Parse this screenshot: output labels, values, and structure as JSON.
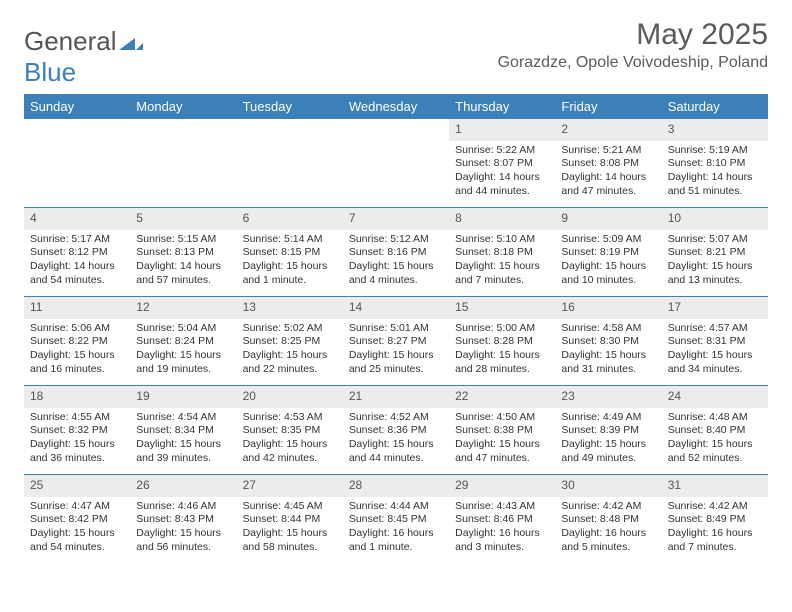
{
  "logo": {
    "text1": "General",
    "text2": "Blue"
  },
  "title": {
    "month": "May 2025",
    "location": "Gorazdze, Opole Voivodeship, Poland"
  },
  "colors": {
    "accent": "#3d7fb8",
    "header_bg": "#3d7fb8",
    "daynum_bg": "#ececec",
    "text": "#333333"
  },
  "day_headers": [
    "Sunday",
    "Monday",
    "Tuesday",
    "Wednesday",
    "Thursday",
    "Friday",
    "Saturday"
  ],
  "blank_leading": 4,
  "days": [
    {
      "n": "1",
      "sunrise": "5:22 AM",
      "sunset": "8:07 PM",
      "daylight": "14 hours and 44 minutes."
    },
    {
      "n": "2",
      "sunrise": "5:21 AM",
      "sunset": "8:08 PM",
      "daylight": "14 hours and 47 minutes."
    },
    {
      "n": "3",
      "sunrise": "5:19 AM",
      "sunset": "8:10 PM",
      "daylight": "14 hours and 51 minutes."
    },
    {
      "n": "4",
      "sunrise": "5:17 AM",
      "sunset": "8:12 PM",
      "daylight": "14 hours and 54 minutes."
    },
    {
      "n": "5",
      "sunrise": "5:15 AM",
      "sunset": "8:13 PM",
      "daylight": "14 hours and 57 minutes."
    },
    {
      "n": "6",
      "sunrise": "5:14 AM",
      "sunset": "8:15 PM",
      "daylight": "15 hours and 1 minute."
    },
    {
      "n": "7",
      "sunrise": "5:12 AM",
      "sunset": "8:16 PM",
      "daylight": "15 hours and 4 minutes."
    },
    {
      "n": "8",
      "sunrise": "5:10 AM",
      "sunset": "8:18 PM",
      "daylight": "15 hours and 7 minutes."
    },
    {
      "n": "9",
      "sunrise": "5:09 AM",
      "sunset": "8:19 PM",
      "daylight": "15 hours and 10 minutes."
    },
    {
      "n": "10",
      "sunrise": "5:07 AM",
      "sunset": "8:21 PM",
      "daylight": "15 hours and 13 minutes."
    },
    {
      "n": "11",
      "sunrise": "5:06 AM",
      "sunset": "8:22 PM",
      "daylight": "15 hours and 16 minutes."
    },
    {
      "n": "12",
      "sunrise": "5:04 AM",
      "sunset": "8:24 PM",
      "daylight": "15 hours and 19 minutes."
    },
    {
      "n": "13",
      "sunrise": "5:02 AM",
      "sunset": "8:25 PM",
      "daylight": "15 hours and 22 minutes."
    },
    {
      "n": "14",
      "sunrise": "5:01 AM",
      "sunset": "8:27 PM",
      "daylight": "15 hours and 25 minutes."
    },
    {
      "n": "15",
      "sunrise": "5:00 AM",
      "sunset": "8:28 PM",
      "daylight": "15 hours and 28 minutes."
    },
    {
      "n": "16",
      "sunrise": "4:58 AM",
      "sunset": "8:30 PM",
      "daylight": "15 hours and 31 minutes."
    },
    {
      "n": "17",
      "sunrise": "4:57 AM",
      "sunset": "8:31 PM",
      "daylight": "15 hours and 34 minutes."
    },
    {
      "n": "18",
      "sunrise": "4:55 AM",
      "sunset": "8:32 PM",
      "daylight": "15 hours and 36 minutes."
    },
    {
      "n": "19",
      "sunrise": "4:54 AM",
      "sunset": "8:34 PM",
      "daylight": "15 hours and 39 minutes."
    },
    {
      "n": "20",
      "sunrise": "4:53 AM",
      "sunset": "8:35 PM",
      "daylight": "15 hours and 42 minutes."
    },
    {
      "n": "21",
      "sunrise": "4:52 AM",
      "sunset": "8:36 PM",
      "daylight": "15 hours and 44 minutes."
    },
    {
      "n": "22",
      "sunrise": "4:50 AM",
      "sunset": "8:38 PM",
      "daylight": "15 hours and 47 minutes."
    },
    {
      "n": "23",
      "sunrise": "4:49 AM",
      "sunset": "8:39 PM",
      "daylight": "15 hours and 49 minutes."
    },
    {
      "n": "24",
      "sunrise": "4:48 AM",
      "sunset": "8:40 PM",
      "daylight": "15 hours and 52 minutes."
    },
    {
      "n": "25",
      "sunrise": "4:47 AM",
      "sunset": "8:42 PM",
      "daylight": "15 hours and 54 minutes."
    },
    {
      "n": "26",
      "sunrise": "4:46 AM",
      "sunset": "8:43 PM",
      "daylight": "15 hours and 56 minutes."
    },
    {
      "n": "27",
      "sunrise": "4:45 AM",
      "sunset": "8:44 PM",
      "daylight": "15 hours and 58 minutes."
    },
    {
      "n": "28",
      "sunrise": "4:44 AM",
      "sunset": "8:45 PM",
      "daylight": "16 hours and 1 minute."
    },
    {
      "n": "29",
      "sunrise": "4:43 AM",
      "sunset": "8:46 PM",
      "daylight": "16 hours and 3 minutes."
    },
    {
      "n": "30",
      "sunrise": "4:42 AM",
      "sunset": "8:48 PM",
      "daylight": "16 hours and 5 minutes."
    },
    {
      "n": "31",
      "sunrise": "4:42 AM",
      "sunset": "8:49 PM",
      "daylight": "16 hours and 7 minutes."
    }
  ],
  "labels": {
    "sunrise": "Sunrise:",
    "sunset": "Sunset:",
    "daylight": "Daylight:"
  }
}
